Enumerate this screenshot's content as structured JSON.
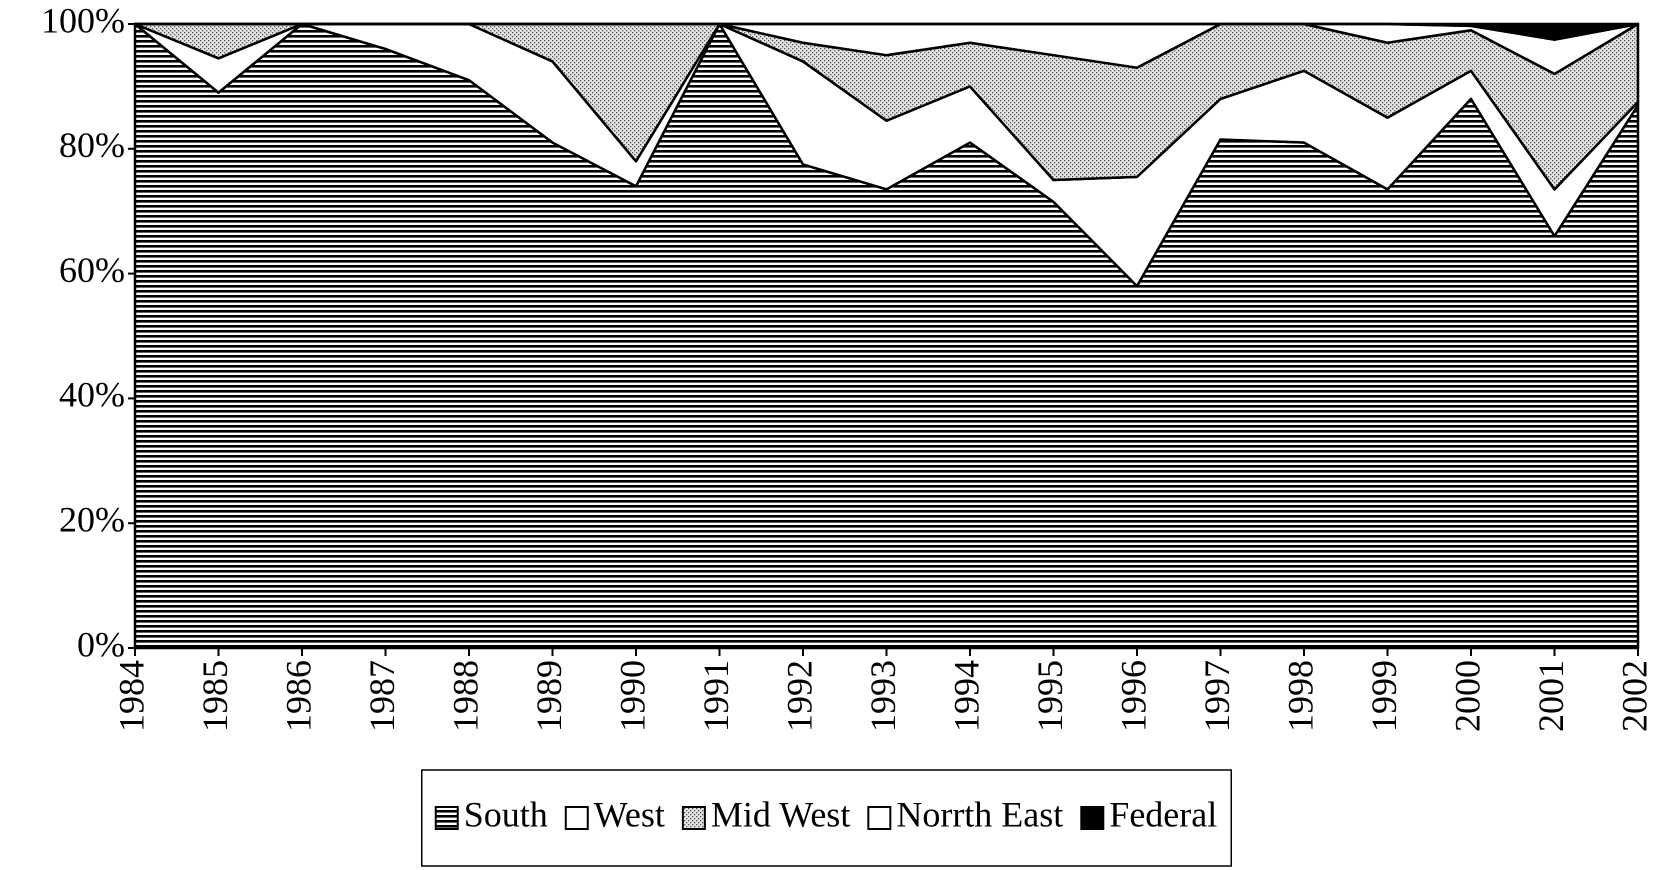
{
  "chart_data": {
    "type": "stacked_area",
    "categories": [
      "1984",
      "1985",
      "1986",
      "1987",
      "1988",
      "1989",
      "1990",
      "1991",
      "1992",
      "1993",
      "1994",
      "1995",
      "1996",
      "1997",
      "1998",
      "1999",
      "2000",
      "2001",
      "2002"
    ],
    "series": [
      {
        "name": "South",
        "color": "#000000",
        "pattern": "hstripe",
        "values": [
          100,
          89,
          100,
          96,
          91,
          81,
          74,
          100,
          77.5,
          73.5,
          81,
          71.5,
          58,
          81.5,
          81,
          73.5,
          88,
          66,
          87
        ]
      },
      {
        "name": "West",
        "color": "#ffffff",
        "pattern": "none",
        "values": [
          0,
          5.5,
          0,
          4,
          9,
          13,
          4,
          0,
          16.5,
          11,
          9,
          3.5,
          17.5,
          6.5,
          11.5,
          11.5,
          4.5,
          7.5,
          0.5
        ]
      },
      {
        "name": "Mid West",
        "color": "#c8c8c8",
        "pattern": "dots",
        "values": [
          0,
          5.5,
          0,
          0,
          0,
          6,
          22,
          0,
          3,
          10.5,
          7,
          20,
          17.5,
          12,
          7.5,
          12,
          6.5,
          18.5,
          12.5
        ]
      },
      {
        "name": "Norrth East",
        "color": "#ffffff",
        "pattern": "none",
        "values": [
          0,
          0,
          0,
          0,
          0,
          0,
          0,
          0,
          3,
          5,
          3,
          5,
          7,
          0,
          0,
          3,
          0.7,
          5.5,
          0
        ]
      },
      {
        "name": "Federal",
        "color": "#000000",
        "pattern": "solid",
        "values": [
          0,
          0,
          0,
          0,
          0,
          0,
          0,
          0,
          0,
          0,
          0,
          0,
          0,
          0,
          0,
          0,
          0.3,
          2.5,
          0
        ]
      }
    ],
    "ylim": [
      0,
      100
    ],
    "yticks": [
      {
        "value": 0,
        "label": "0%"
      },
      {
        "value": 20,
        "label": "20%"
      },
      {
        "value": 40,
        "label": "40%"
      },
      {
        "value": 60,
        "label": "60%"
      },
      {
        "value": 80,
        "label": "80%"
      },
      {
        "value": 100,
        "label": "100%"
      }
    ],
    "legend": "bottom"
  }
}
